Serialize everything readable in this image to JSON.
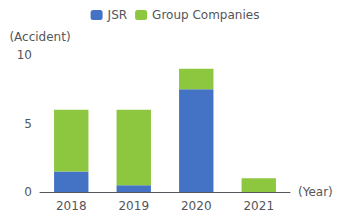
{
  "chart_data": {
    "type": "bar",
    "stacked": true,
    "categories": [
      "2018",
      "2019",
      "2020",
      "2021"
    ],
    "series": [
      {
        "name": "JSR",
        "color": "#4472c4",
        "values": [
          1.5,
          0.5,
          7.5,
          0
        ]
      },
      {
        "name": "Group Companies",
        "color": "#8dc63f",
        "values": [
          4.5,
          5.5,
          1.5,
          1
        ]
      }
    ],
    "ylim": [
      0,
      10
    ],
    "yticks": [
      0,
      5,
      10
    ],
    "ylabel": "(Accident)",
    "xlabel": "(Year)",
    "grid": false,
    "legend": "top"
  }
}
